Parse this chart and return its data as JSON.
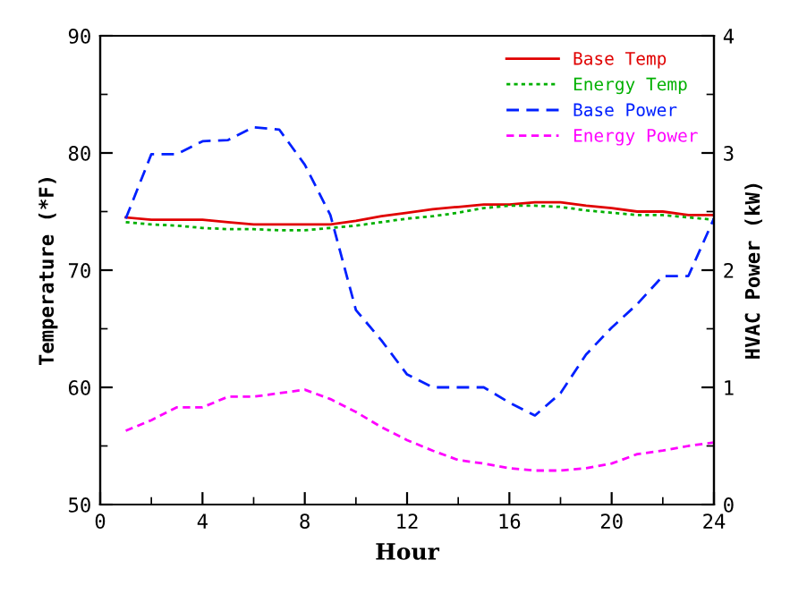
{
  "chart_data": {
    "type": "line",
    "xlabel": "Hour",
    "ylabel": "Temperature (*F)",
    "y2label": "HVAC Power (kW)",
    "x": [
      1,
      2,
      3,
      4,
      5,
      6,
      7,
      8,
      9,
      10,
      11,
      12,
      13,
      14,
      15,
      16,
      17,
      18,
      19,
      20,
      21,
      22,
      23,
      24
    ],
    "series": [
      {
        "name": "Base Temp",
        "color": "#e00000",
        "line_style": "solid",
        "values": [
          74.5,
          74.3,
          74.3,
          74.3,
          74.1,
          73.9,
          73.9,
          73.9,
          73.9,
          74.2,
          74.6,
          74.9,
          75.2,
          75.4,
          75.6,
          75.6,
          75.8,
          75.8,
          75.5,
          75.3,
          75.0,
          75.0,
          74.7,
          74.7
        ]
      },
      {
        "name": "Energy Temp",
        "color": "#00b000",
        "line_style": "dotted",
        "values": [
          74.1,
          73.9,
          73.8,
          73.6,
          73.5,
          73.5,
          73.4,
          73.4,
          73.6,
          73.8,
          74.1,
          74.4,
          74.6,
          74.9,
          75.3,
          75.5,
          75.5,
          75.4,
          75.1,
          74.9,
          74.7,
          74.7,
          74.5,
          74.3
        ]
      },
      {
        "name": "Base Power",
        "color": "#0020ff",
        "line_style": "dashed",
        "axis": "y2",
        "values": [
          2.44,
          2.99,
          2.99,
          3.1,
          3.11,
          3.22,
          3.2,
          2.9,
          2.47,
          1.66,
          1.4,
          1.11,
          1.0,
          1.0,
          1.0,
          0.87,
          0.76,
          0.95,
          1.28,
          1.51,
          1.71,
          1.95,
          1.95,
          2.44
        ]
      },
      {
        "name": "Energy Power",
        "color": "#ff00ff",
        "line_style": "dashed",
        "axis": "y2",
        "values": [
          0.63,
          0.72,
          0.83,
          0.83,
          0.92,
          0.92,
          0.95,
          0.98,
          0.9,
          0.79,
          0.66,
          0.55,
          0.46,
          0.38,
          0.35,
          0.31,
          0.29,
          0.29,
          0.31,
          0.35,
          0.43,
          0.46,
          0.5,
          0.53
        ]
      }
    ],
    "xlim": [
      0,
      24
    ],
    "xticks": [
      0,
      4,
      8,
      12,
      16,
      20,
      24
    ],
    "ylim": [
      50,
      90
    ],
    "yticks": [
      50,
      60,
      70,
      80,
      90
    ],
    "y2lim": [
      0,
      4
    ],
    "y2ticks": [
      0,
      1,
      2,
      3,
      4
    ],
    "legend": "top right",
    "grid": false,
    "marker": "none"
  }
}
